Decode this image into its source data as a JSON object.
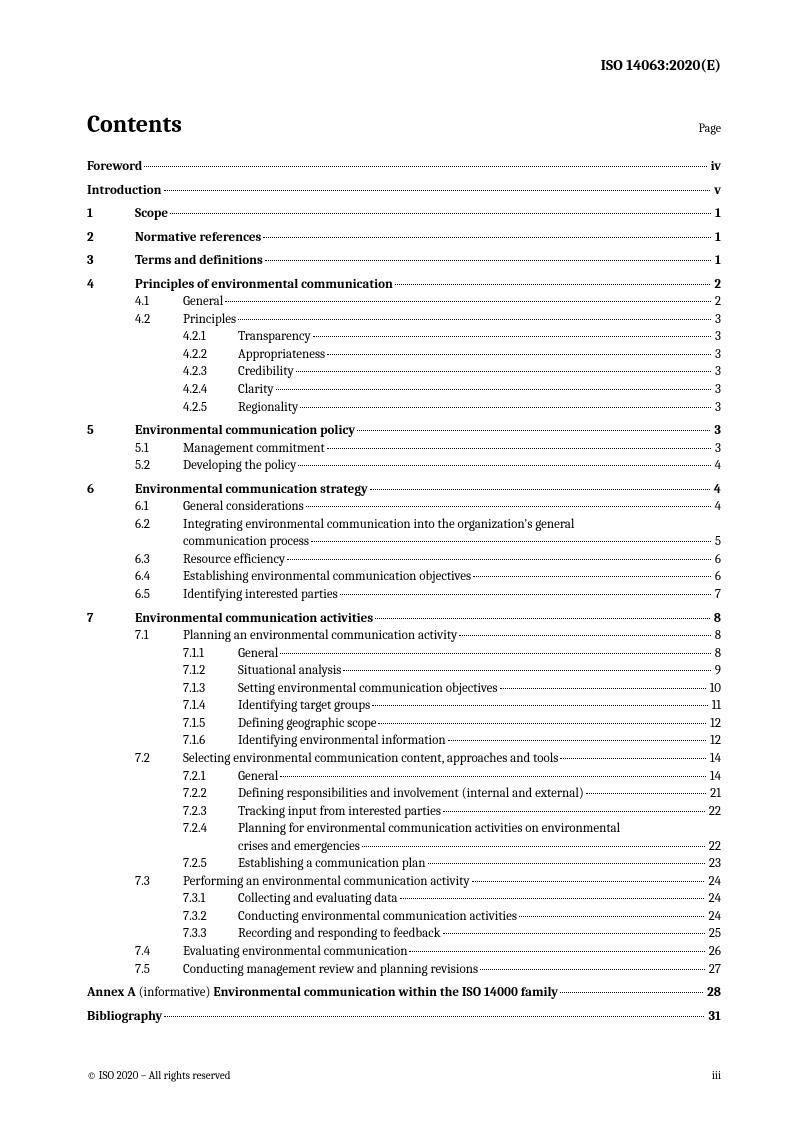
{
  "header": "ISO 14063:2020(E)",
  "title": "Contents",
  "pageLabel": "Page",
  "footer_left": "© ISO 2020 – All rights reserved",
  "footer_right": "iii",
  "entries": [
    {
      "type": "top-nonum",
      "label": "Foreword",
      "page": "iv"
    },
    {
      "type": "top-nonum",
      "label": "Introduction",
      "page": "v"
    },
    {
      "type": "top",
      "num": "1",
      "label": "Scope",
      "page": "1"
    },
    {
      "type": "top",
      "num": "2",
      "label": "Normative references",
      "page": "1"
    },
    {
      "type": "top",
      "num": "3",
      "label": "Terms and definitions",
      "page": "1"
    },
    {
      "type": "top",
      "num": "4",
      "label": "Principles of environmental communication",
      "page": "2"
    },
    {
      "type": "sub",
      "num": "4.1",
      "label": "General",
      "page": "2"
    },
    {
      "type": "sub",
      "num": "4.2",
      "label": "Principles",
      "page": "3"
    },
    {
      "type": "subsub",
      "num": "4.2.1",
      "label": "Transparency",
      "page": "3"
    },
    {
      "type": "subsub",
      "num": "4.2.2",
      "label": "Appropriateness",
      "page": "3"
    },
    {
      "type": "subsub",
      "num": "4.2.3",
      "label": "Credibility",
      "page": "3"
    },
    {
      "type": "subsub",
      "num": "4.2.4",
      "label": "Clarity",
      "page": "3"
    },
    {
      "type": "subsub",
      "num": "4.2.5",
      "label": "Regionality",
      "page": "3"
    },
    {
      "type": "top",
      "num": "5",
      "label": "Environmental communication policy",
      "page": "3"
    },
    {
      "type": "sub",
      "num": "5.1",
      "label": "Management commitment",
      "page": "3"
    },
    {
      "type": "sub",
      "num": "5.2",
      "label": "Developing the policy",
      "page": "4"
    },
    {
      "type": "top",
      "num": "6",
      "label": "Environmental communication strategy",
      "page": "4"
    },
    {
      "type": "sub",
      "num": "6.1",
      "label": "General considerations",
      "page": "4"
    },
    {
      "type": "sub-wrap",
      "num": "6.2",
      "label1": "Integrating environmental communication into the organization's general",
      "label2": "communication process",
      "page": "5"
    },
    {
      "type": "sub",
      "num": "6.3",
      "label": "Resource efficiency",
      "page": "6"
    },
    {
      "type": "sub",
      "num": "6.4",
      "label": "Establishing environmental communication objectives",
      "page": "6"
    },
    {
      "type": "sub",
      "num": "6.5",
      "label": "Identifying interested parties",
      "page": "7"
    },
    {
      "type": "top",
      "num": "7",
      "label": "Environmental communication activities",
      "page": "8"
    },
    {
      "type": "sub",
      "num": "7.1",
      "label": "Planning an environmental communication activity",
      "page": "8"
    },
    {
      "type": "subsub",
      "num": "7.1.1",
      "label": "General",
      "page": "8"
    },
    {
      "type": "subsub",
      "num": "7.1.2",
      "label": "Situational analysis",
      "page": "9"
    },
    {
      "type": "subsub",
      "num": "7.1.3",
      "label": "Setting environmental communication objectives",
      "page": "10"
    },
    {
      "type": "subsub",
      "num": "7.1.4",
      "label": "Identifying target groups",
      "page": "11"
    },
    {
      "type": "subsub",
      "num": "7.1.5",
      "label": "Defining geographic scope",
      "page": "12"
    },
    {
      "type": "subsub",
      "num": "7.1.6",
      "label": "Identifying environmental information",
      "page": "12"
    },
    {
      "type": "sub",
      "num": "7.2",
      "label": "Selecting environmental communication content, approaches and tools",
      "page": "14"
    },
    {
      "type": "subsub",
      "num": "7.2.1",
      "label": "General",
      "page": "14"
    },
    {
      "type": "subsub",
      "num": "7.2.2",
      "label": "Defining responsibilities and involvement (internal and external)",
      "page": "21"
    },
    {
      "type": "subsub",
      "num": "7.2.3",
      "label": "Tracking input from interested parties",
      "page": "22"
    },
    {
      "type": "subsub-wrap",
      "num": "7.2.4",
      "label1": "Planning for environmental communication activities on environmental",
      "label2": "crises and emergencies",
      "page": "22"
    },
    {
      "type": "subsub",
      "num": "7.2.5",
      "label": "Establishing a communication plan",
      "page": "23"
    },
    {
      "type": "sub",
      "num": "7.3",
      "label": "Performing an environmental communication activity",
      "page": "24"
    },
    {
      "type": "subsub",
      "num": "7.3.1",
      "label": "Collecting and evaluating data",
      "page": "24"
    },
    {
      "type": "subsub",
      "num": "7.3.2",
      "label": "Conducting environmental communication activities",
      "page": "24"
    },
    {
      "type": "subsub",
      "num": "7.3.3",
      "label": "Recording and responding to feedback",
      "page": "25"
    },
    {
      "type": "sub",
      "num": "7.4",
      "label": "Evaluating environmental communication",
      "page": "26"
    },
    {
      "type": "sub",
      "num": "7.5",
      "label": "Conducting management review and planning revisions",
      "page": "27"
    },
    {
      "type": "annex",
      "num": "Annex A",
      "annot": "(informative)",
      "label": "Environmental communication within the ISO 14000 family",
      "page": "28"
    },
    {
      "type": "top-nonum",
      "label": "Bibliography",
      "page": "31"
    }
  ]
}
